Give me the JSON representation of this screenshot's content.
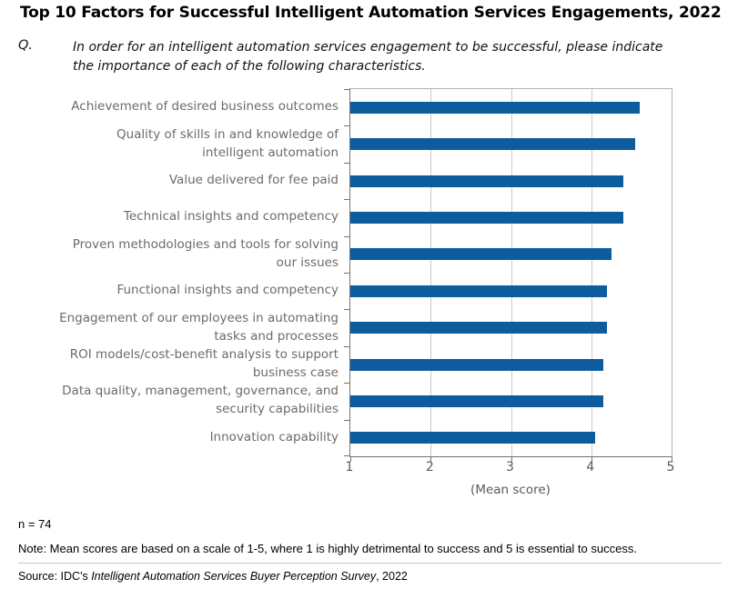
{
  "title": "Top 10 Factors for Successful Intelligent Automation Services Engagements, 2022",
  "question": {
    "prefix": "Q.",
    "text": "In order for an intelligent automation services engagement to be successful, please indicate\nthe importance of each of the following characteristics."
  },
  "chart_data": {
    "type": "bar",
    "orientation": "horizontal",
    "categories": [
      "Achievement of desired business outcomes",
      "Quality of skills in and knowledge of\nintelligent automation",
      "Value delivered for fee paid",
      "Technical insights and competency",
      "Proven methodologies and tools for solving\nour issues",
      "Functional insights and competency",
      "Engagement of our employees in automating\ntasks and processes",
      "ROI models/cost-benefit analysis to support\nbusiness case",
      "Data quality, management, governance, and\nsecurity capabilities",
      "Innovation capability"
    ],
    "values": [
      4.6,
      4.55,
      4.4,
      4.4,
      4.25,
      4.2,
      4.2,
      4.15,
      4.15,
      4.05
    ],
    "xlabel": "(Mean score)",
    "xlim": [
      1,
      5
    ],
    "xticks": [
      1,
      2,
      3,
      4,
      5
    ],
    "grid": true,
    "legend": false,
    "bar_color": "#0e5c9e"
  },
  "footnotes": {
    "n": "n = 74",
    "note": "Note: Mean scores are based on a scale of 1-5, where 1 is highly detrimental to success and 5 is essential to success.",
    "source_prefix": "Source: IDC's ",
    "source_italic": "Intelligent Automation Services Buyer Perception Survey",
    "source_suffix": ", 2022"
  }
}
